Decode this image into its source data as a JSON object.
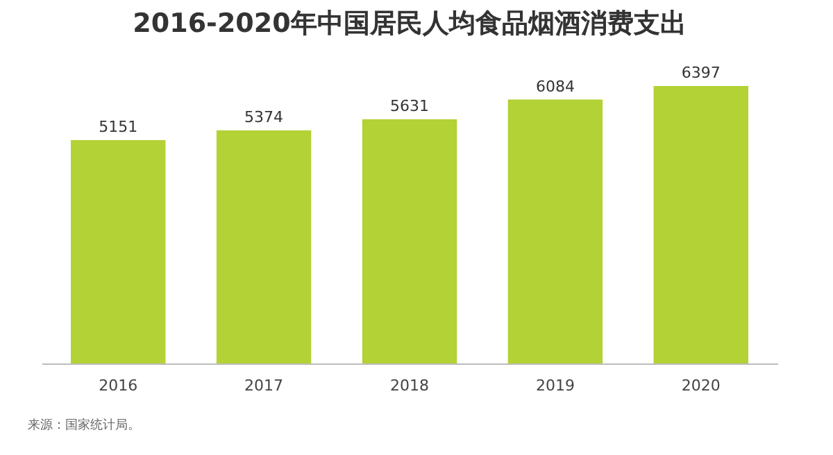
{
  "chart_data": {
    "type": "bar",
    "title": "2016-2020年中国居民人均食品烟酒消费支出",
    "categories": [
      "2016",
      "2017",
      "2018",
      "2019",
      "2020"
    ],
    "values": [
      5151,
      5374,
      5631,
      6084,
      6397
    ],
    "color": "#b3d235",
    "data_labels": true,
    "tick_labels": "x",
    "annotations": [
      "来源：国家统计局。"
    ]
  }
}
